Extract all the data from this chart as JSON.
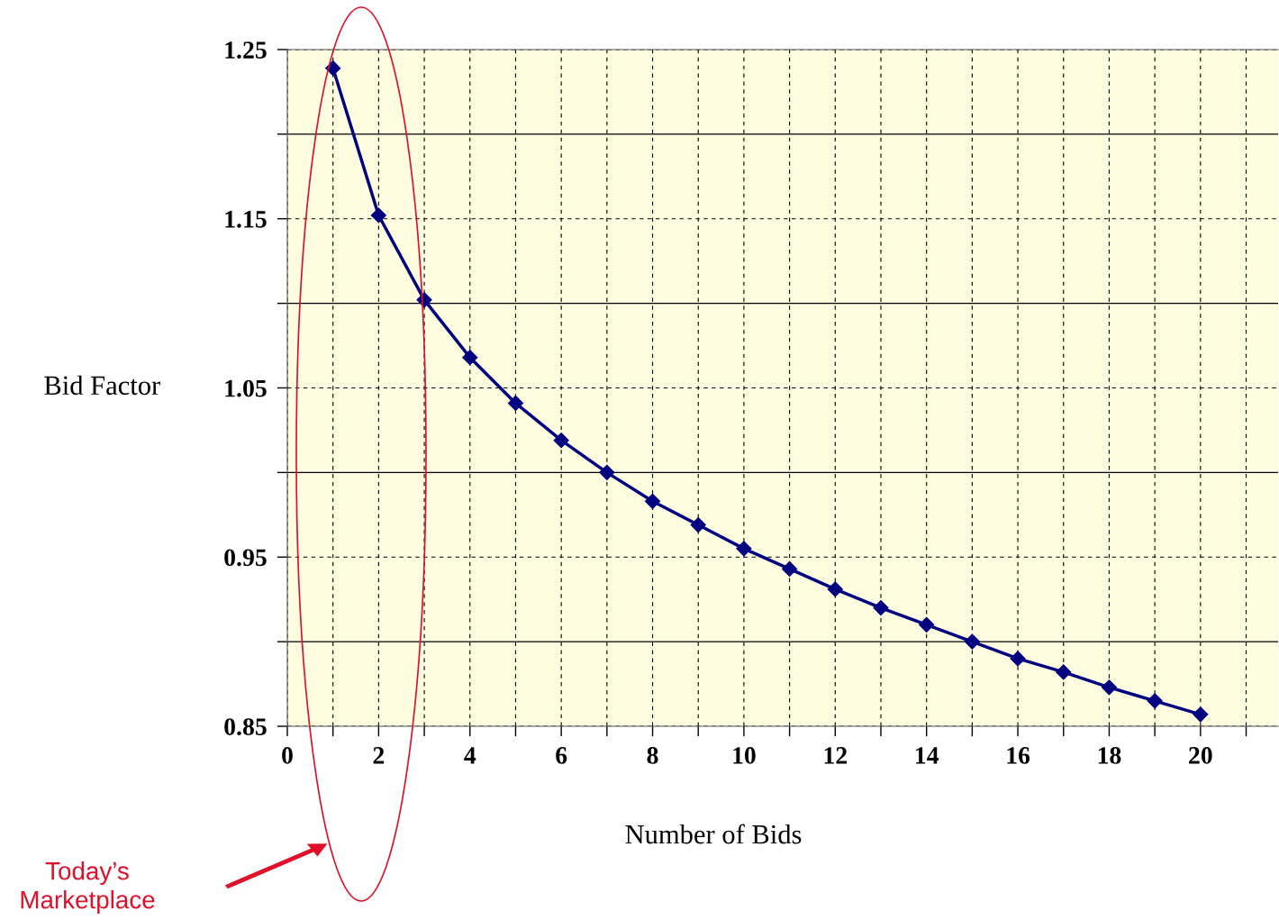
{
  "chart_data": {
    "type": "line",
    "xlabel": "Number of Bids",
    "ylabel": "Bid Factor",
    "x": [
      1,
      2,
      3,
      4,
      5,
      6,
      7,
      8,
      9,
      10,
      11,
      12,
      13,
      14,
      15,
      16,
      17,
      18,
      19,
      20
    ],
    "series": [
      {
        "color": "#000080",
        "values": [
          1.239,
          1.152,
          1.102,
          1.068,
          1.041,
          1.019,
          1.0,
          0.983,
          0.969,
          0.955,
          0.943,
          0.931,
          0.92,
          0.91,
          0.9,
          0.89,
          0.882,
          0.873,
          0.865,
          0.857
        ]
      }
    ],
    "xlim": [
      0,
      21.7
    ],
    "xticks": [
      0,
      {
        "value": 1,
        "label": null
      },
      2,
      {
        "value": 3,
        "label": null
      },
      4,
      {
        "value": 5,
        "label": null
      },
      6,
      {
        "value": 7,
        "label": null
      },
      8,
      {
        "value": 9,
        "label": null
      },
      10,
      {
        "value": 11,
        "label": null
      },
      12,
      {
        "value": 13,
        "label": null
      },
      14,
      {
        "value": 15,
        "label": null
      },
      16,
      {
        "value": 17,
        "label": null
      },
      18,
      {
        "value": 19,
        "label": null
      },
      20,
      {
        "value": 21,
        "label": null
      }
    ],
    "ylim": [
      0.85,
      1.25
    ],
    "yticks": [
      0.85,
      {
        "value": 0.9,
        "label": null
      },
      0.95,
      {
        "value": 1.0,
        "label": null
      },
      1.05,
      {
        "value": 1.1,
        "label": null
      },
      1.15,
      {
        "value": 1.2,
        "label": null
      },
      1.25
    ],
    "grid": true,
    "marker": "diamond",
    "line_style": "solid",
    "legend": false,
    "annotations": [
      "Today’s\nMarketplace"
    ]
  }
}
